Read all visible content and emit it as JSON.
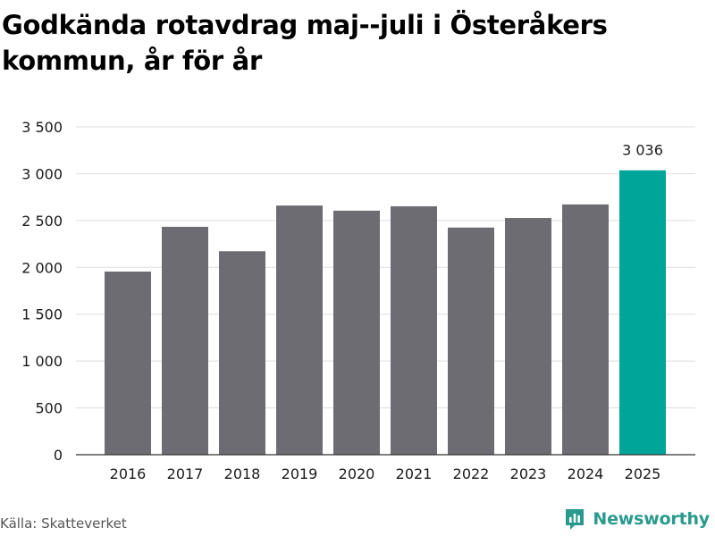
{
  "title": "Godkända rotavdrag maj--juli i Österåkers kommun, år för år",
  "source": "Källa: Skatteverket",
  "brand": {
    "name": "Newsworthy",
    "color": "#2a9a8e",
    "icon": "newsworthy-logo-icon"
  },
  "colors": {
    "bar": "#6d6c72",
    "highlight": "#00a59a",
    "grid": "#dddddd",
    "axis": "#333333"
  },
  "chart_data": {
    "type": "bar",
    "categories": [
      "2016",
      "2017",
      "2018",
      "2019",
      "2020",
      "2021",
      "2022",
      "2023",
      "2024",
      "2025"
    ],
    "values": [
      1955,
      2433,
      2172,
      2660,
      2605,
      2652,
      2425,
      2527,
      2672,
      3036
    ],
    "highlight_index": 9,
    "data_labels": [
      {
        "index": 9,
        "text": "3 036"
      }
    ],
    "yticks": [
      0,
      500,
      1000,
      1500,
      2000,
      2500,
      3000,
      3500
    ],
    "ytick_labels": [
      "0",
      "500",
      "1 000",
      "1 500",
      "2 000",
      "2 500",
      "3 000",
      "3 500"
    ],
    "ylim": [
      0,
      3500
    ],
    "title": "Godkända rotavdrag maj--juli i Österåkers kommun, år för år",
    "xlabel": "",
    "ylabel": "",
    "grid": true
  }
}
